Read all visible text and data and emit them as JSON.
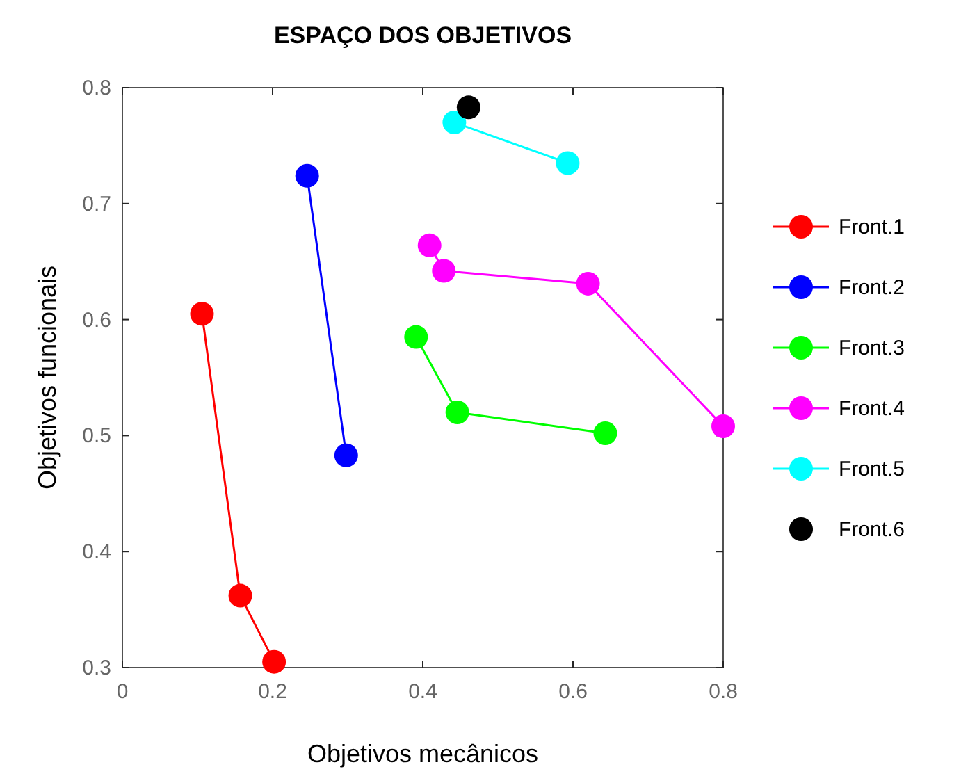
{
  "chart_data": {
    "type": "line",
    "title": "ESPAÇO DOS OBJETIVOS",
    "xlabel": "Objetivos mecânicos",
    "ylabel": "Objetivos funcionais",
    "xlim": [
      0,
      0.8
    ],
    "ylim": [
      0.3,
      0.8
    ],
    "xticks": [
      0,
      0.2,
      0.4,
      0.6,
      0.8
    ],
    "yticks": [
      0.3,
      0.4,
      0.5,
      0.6,
      0.7,
      0.8
    ],
    "grid": false,
    "legend": "right",
    "marker": "circle",
    "line_style": "solid",
    "series": [
      {
        "name": "Front.1",
        "color": "#ff0000",
        "x": [
          0.106,
          0.157,
          0.202
        ],
        "values": [
          0.605,
          0.362,
          0.305
        ]
      },
      {
        "name": "Front.2",
        "color": "#0000ff",
        "x": [
          0.246,
          0.298
        ],
        "values": [
          0.724,
          0.483
        ]
      },
      {
        "name": "Front.3",
        "color": "#00ff00",
        "x": [
          0.391,
          0.446,
          0.643
        ],
        "values": [
          0.585,
          0.52,
          0.502
        ]
      },
      {
        "name": "Front.4",
        "color": "#ff00ff",
        "x": [
          0.409,
          0.428,
          0.62,
          0.8
        ],
        "values": [
          0.664,
          0.642,
          0.631,
          0.508
        ]
      },
      {
        "name": "Front.5",
        "color": "#00ffff",
        "x": [
          0.442,
          0.593
        ],
        "values": [
          0.77,
          0.735
        ]
      },
      {
        "name": "Front.6",
        "type": "scatter",
        "color": "#000000",
        "x": [
          0.461
        ],
        "values": [
          0.783
        ]
      }
    ]
  }
}
